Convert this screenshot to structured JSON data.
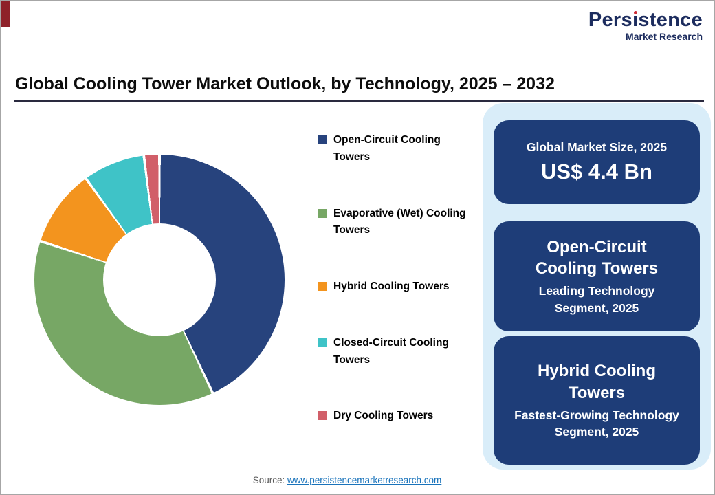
{
  "logo": {
    "name_part1": "Pers",
    "name_i": "ı",
    "name_part2": "stence",
    "tagline": "Market Research"
  },
  "title": "Global Cooling Tower Market Outlook, by Technology, 2025 – 2032",
  "chart_data": {
    "type": "pie",
    "subtype": "donut",
    "title": "Global Cooling Tower Market Outlook, by Technology, 2025 – 2032",
    "legend_position": "right",
    "segments": [
      {
        "label": "Open-Circuit Cooling Towers",
        "value": 43,
        "color": "#27437d"
      },
      {
        "label": "Evaporative (Wet) Cooling Towers",
        "value": 37,
        "color": "#77a765"
      },
      {
        "label": "Hybrid Cooling Towers",
        "value": 10,
        "color": "#f3941e"
      },
      {
        "label": "Closed-Circuit Cooling Towers",
        "value": 8,
        "color": "#3fc3c7"
      },
      {
        "label": "Dry Cooling Towers",
        "value": 2,
        "color": "#d15f69"
      }
    ]
  },
  "panel": {
    "market_size_card": {
      "label": "Global Market Size, 2025",
      "value": "US$ 4.4 Bn"
    },
    "leading_card": {
      "title": "Open-Circuit Cooling Towers",
      "subtitle": "Leading Technology Segment, 2025"
    },
    "fastest_card": {
      "title": "Hybrid Cooling Towers",
      "subtitle": "Fastest-Growing Technology Segment, 2025"
    }
  },
  "source": {
    "label": "Source: ",
    "link": "www.persistencemarketresearch.com"
  },
  "colors": {
    "card_bg": "#1e3d78",
    "panel_bg": "#d9edf9",
    "logo_navy": "#1c2c5e",
    "logo_dot_red": "#cf2e36",
    "link_blue": "#1973bb"
  }
}
